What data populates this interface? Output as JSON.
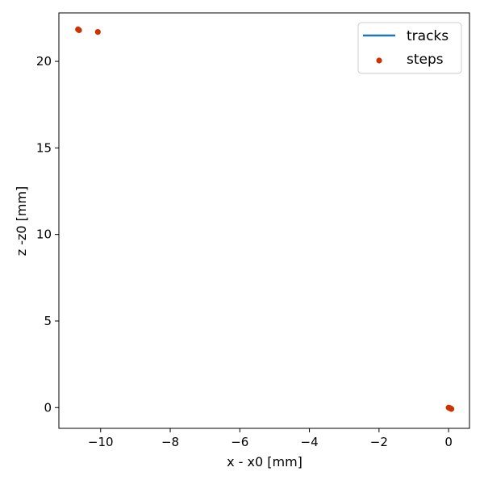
{
  "chart_data": {
    "type": "scatter",
    "xlabel": "x - x0 [mm]",
    "ylabel": "z -z0 [mm]",
    "xlim": [
      -11.2,
      0.6
    ],
    "ylim": [
      -1.2,
      22.8
    ],
    "xticks": [
      -10,
      -8,
      -6,
      -4,
      -2,
      0
    ],
    "yticks": [
      0,
      5,
      10,
      15,
      20
    ],
    "legend_position": "top-right",
    "grid": false,
    "series": [
      {
        "name": "tracks",
        "kind": "line",
        "color": "#1f77b4",
        "points": [
          [
            0.0,
            0.0
          ],
          [
            0.03,
            -0.02
          ],
          [
            0.06,
            -0.04
          ],
          [
            0.07,
            -0.06
          ]
        ]
      },
      {
        "name": "steps",
        "kind": "scatter",
        "color": "#cc3300",
        "points": [
          [
            -10.65,
            21.85
          ],
          [
            -10.62,
            21.8
          ],
          [
            -10.08,
            21.7
          ],
          [
            0.0,
            0.0
          ],
          [
            0.02,
            -0.02
          ],
          [
            0.04,
            -0.03
          ],
          [
            0.05,
            -0.05
          ],
          [
            0.07,
            -0.06
          ],
          [
            0.08,
            -0.08
          ]
        ]
      }
    ]
  }
}
